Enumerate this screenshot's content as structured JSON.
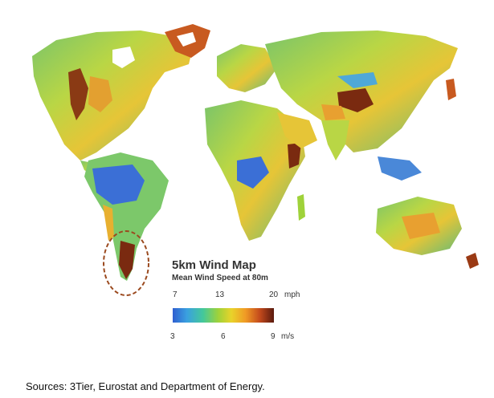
{
  "legend": {
    "title": "5km Wind Map",
    "subtitle": "Mean Wind Speed at 80m",
    "mph_ticks": [
      "7",
      "13",
      "20"
    ],
    "mph_unit": "mph",
    "ms_ticks": [
      "3",
      "6",
      "9"
    ],
    "ms_unit": "m/s",
    "gradient_colors": [
      "#2f5fd0",
      "#3aa0e0",
      "#44c89a",
      "#9fd23a",
      "#e9d32a",
      "#f09a25",
      "#c44a1c",
      "#5a1a0e"
    ]
  },
  "highlight": {
    "region": "southern South America",
    "color": "#9b4a1f"
  },
  "map_colors": {
    "low_wind": "#3b6fd6",
    "mid_wind": "#6cc46a",
    "high_wind": "#e8c12e",
    "very_high_wind": "#7a2a10"
  },
  "footer": {
    "sources": "Sources: 3Tier, Eurostat and Department of Energy."
  }
}
